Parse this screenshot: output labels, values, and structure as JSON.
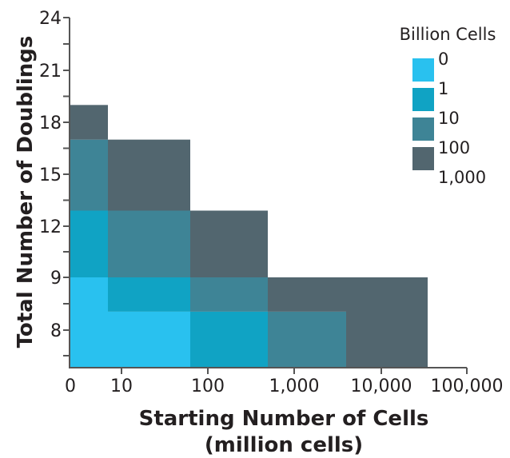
{
  "chart_data": {
    "type": "heatmap",
    "title": "",
    "xlabel": "Starting Number of Cells",
    "xlabel_line2": "(million cells)",
    "ylabel": "Total Number of Doublings",
    "x_scale": "log (with 0 at origin)",
    "x_ticks": [
      {
        "value": 0,
        "label": "0"
      },
      {
        "value": 10,
        "label": "10"
      },
      {
        "value": 100,
        "label": "100"
      },
      {
        "value": 1000,
        "label": "1,000"
      },
      {
        "value": 10000,
        "label": "10,000"
      },
      {
        "value": 100000,
        "label": "100,000"
      }
    ],
    "y_ticks": [
      {
        "value": 8,
        "label": "8"
      },
      {
        "value": 9,
        "label": "9"
      },
      {
        "value": 12,
        "label": "12"
      },
      {
        "value": 15,
        "label": "15"
      },
      {
        "value": 18,
        "label": "18"
      },
      {
        "value": 21,
        "label": "21"
      },
      {
        "value": 24,
        "label": "24"
      }
    ],
    "y_minor_ticks": true,
    "grid": false,
    "legend": {
      "title": "Billion Cells",
      "position": "top-right",
      "bin_edges": [
        "0",
        "1",
        "10",
        "100",
        "1,000"
      ],
      "bins": [
        {
          "range": "0–1",
          "color": "#29c1ef"
        },
        {
          "range": "1–10",
          "color": "#10a3c4"
        },
        {
          "range": "10–100",
          "color": "#3e8496"
        },
        {
          "range": "100–1,000",
          "color": "#52666f"
        }
      ]
    },
    "cells_note": "x bounds in million starting cells (approx, log scale); y bounds in doublings (tick-index scale)",
    "cells": [
      {
        "x0": 0,
        "x1": 7,
        "y0": "floor",
        "y1": 9,
        "bin": 0
      },
      {
        "x0": 0,
        "x1": 7,
        "y0": 9,
        "y1": 12.9,
        "bin": 1
      },
      {
        "x0": 0,
        "x1": 7,
        "y0": 12.9,
        "y1": 17,
        "bin": 2
      },
      {
        "x0": 0,
        "x1": 7,
        "y0": 17,
        "y1": 19,
        "bin": 3
      },
      {
        "x0": 7,
        "x1": 60,
        "y0": "floor",
        "y1": 8.35,
        "bin": 0
      },
      {
        "x0": 7,
        "x1": 60,
        "y0": 8.35,
        "y1": 9,
        "bin": 1
      },
      {
        "x0": 7,
        "x1": 60,
        "y0": 9,
        "y1": 12.9,
        "bin": 2
      },
      {
        "x0": 7,
        "x1": 60,
        "y0": 12.9,
        "y1": 17,
        "bin": 3
      },
      {
        "x0": 60,
        "x1": 500,
        "y0": "floor",
        "y1": 8.35,
        "bin": 1
      },
      {
        "x0": 60,
        "x1": 500,
        "y0": 8.35,
        "y1": 9,
        "bin": 2
      },
      {
        "x0": 60,
        "x1": 500,
        "y0": 9,
        "y1": 12.9,
        "bin": 3
      },
      {
        "x0": 500,
        "x1": 4000,
        "y0": "floor",
        "y1": 8.35,
        "bin": 2
      },
      {
        "x0": 500,
        "x1": 4000,
        "y0": 8.35,
        "y1": 9,
        "bin": 3
      },
      {
        "x0": 4000,
        "x1": 30000,
        "y0": "floor",
        "y1": 9,
        "bin": 3
      }
    ]
  }
}
